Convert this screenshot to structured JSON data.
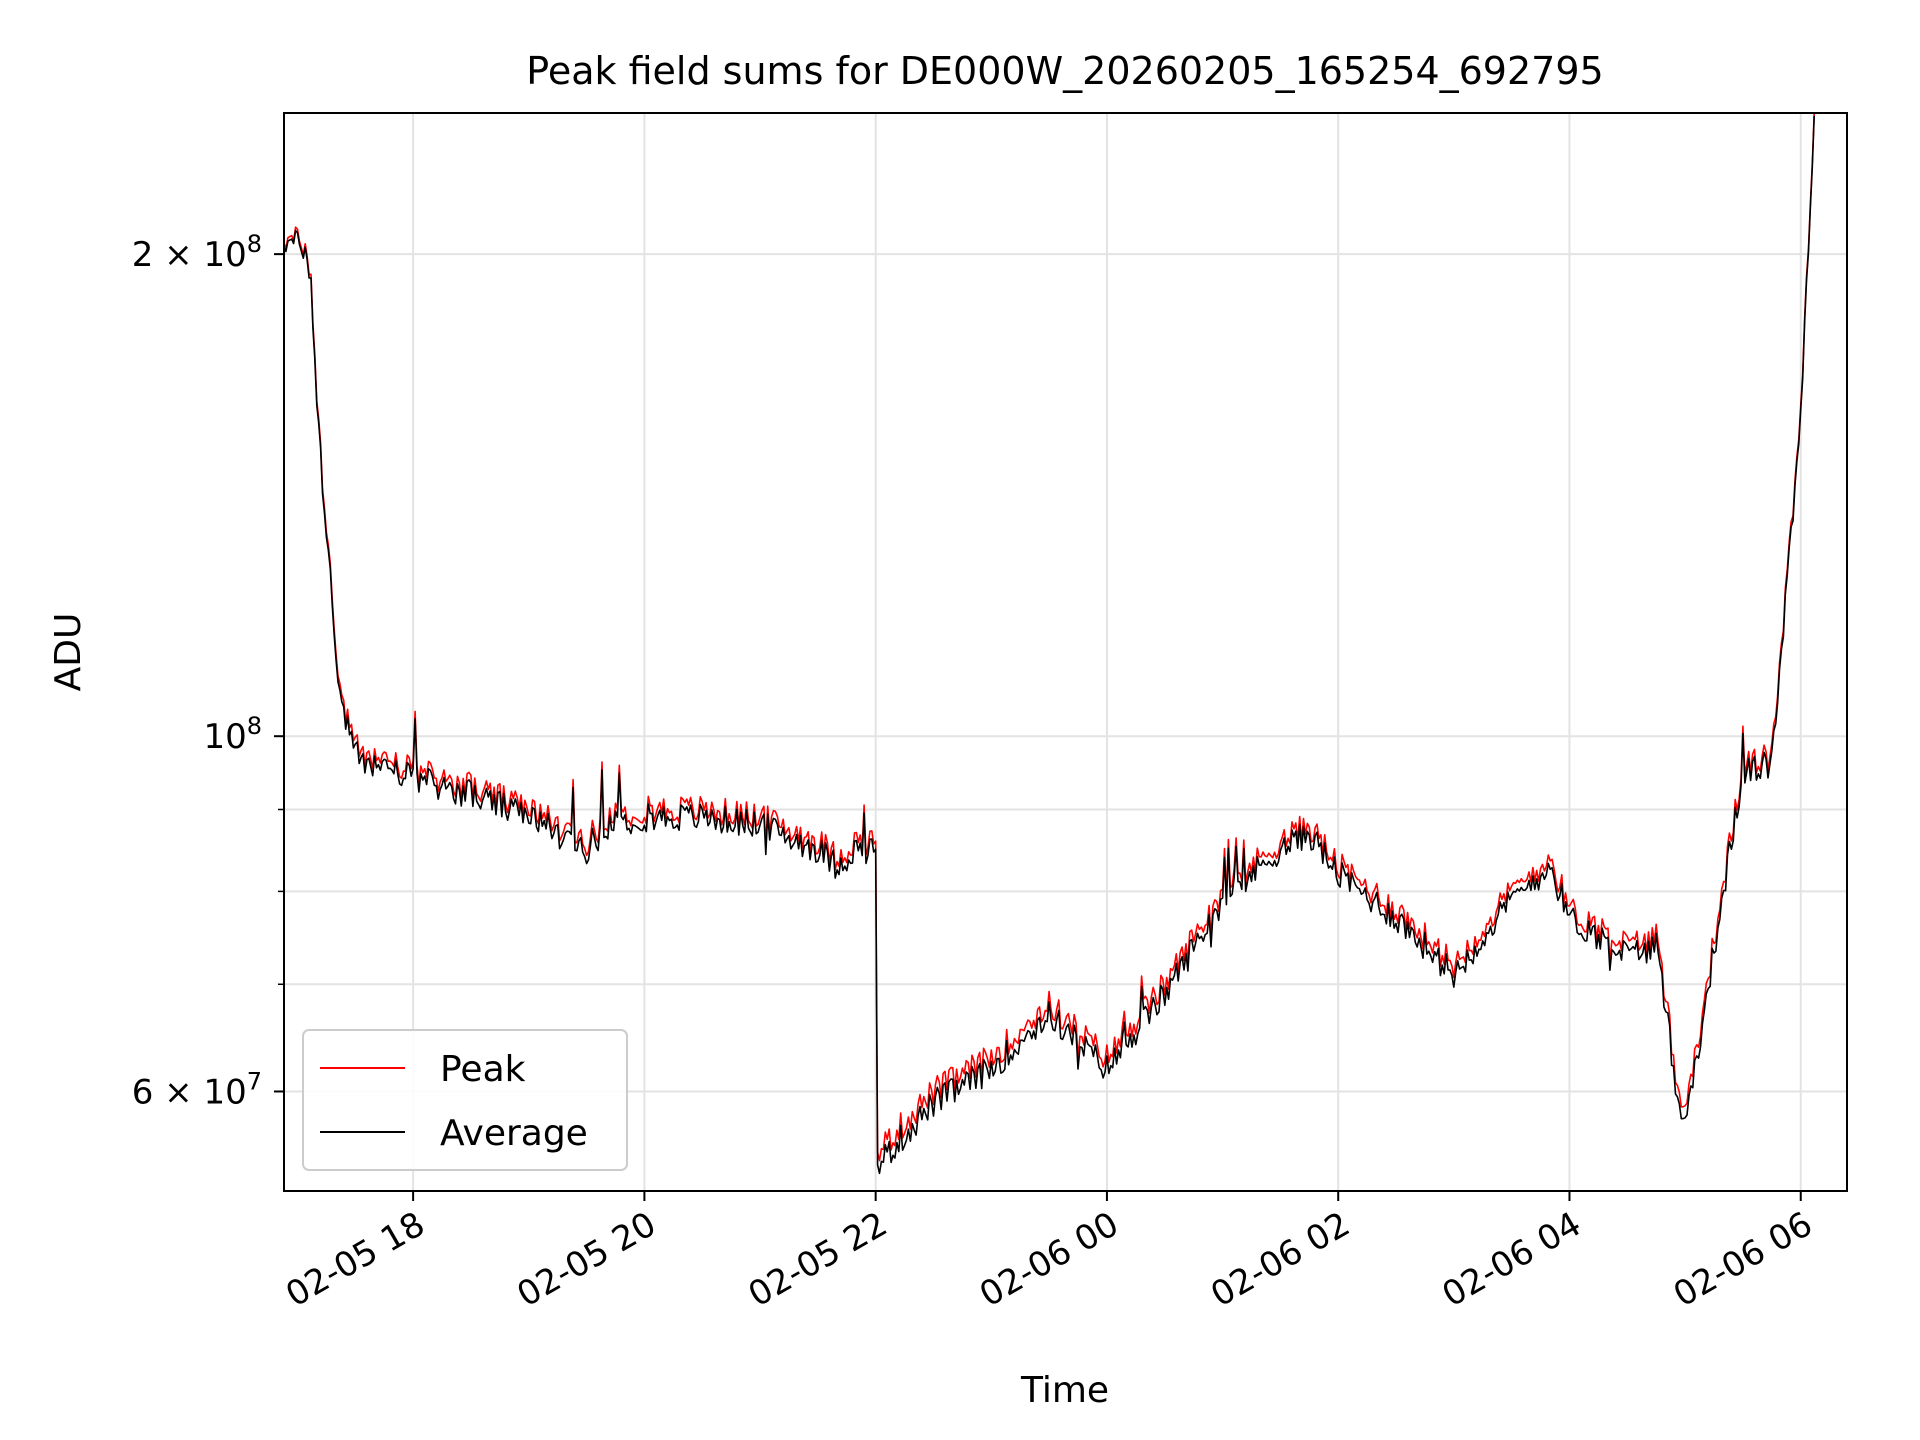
{
  "chart_data": {
    "type": "line",
    "title": "Peak field sums for DE000W_20260205_165254_692795",
    "xlabel": "Time",
    "ylabel": "ADU",
    "y_scale": "log",
    "ylim": [
      52000000,
      245000000
    ],
    "xlim": [
      "2026-02-05 16:53",
      "2026-02-06 06:24"
    ],
    "x_ticks": [
      {
        "label": "02-05 18",
        "value": "2026-02-05 18:00"
      },
      {
        "label": "02-05 20",
        "value": "2026-02-05 20:00"
      },
      {
        "label": "02-05 22",
        "value": "2026-02-05 22:00"
      },
      {
        "label": "02-06 00",
        "value": "2026-02-06 00:00"
      },
      {
        "label": "02-06 02",
        "value": "2026-02-06 02:00"
      },
      {
        "label": "02-06 04",
        "value": "2026-02-06 04:00"
      },
      {
        "label": "02-06 06",
        "value": "2026-02-06 06:00"
      }
    ],
    "y_major_ticks": [
      {
        "label": "2 × 10",
        "exp": "8",
        "value": 200000000
      },
      {
        "label": "10",
        "exp": "8",
        "value": 100000000
      },
      {
        "label": "6 × 10",
        "exp": "7",
        "value": 60000000
      }
    ],
    "y_minor_gridlines": [
      70000000,
      80000000,
      90000000
    ],
    "grid": true,
    "legend_position": "lower-left",
    "colors": {
      "peak": "#ff0000",
      "average": "#000000"
    },
    "series": [
      {
        "name": "Peak",
        "x": [
          "2026-02-05 16:53",
          "2026-02-05 17:04",
          "2026-02-05 17:06",
          "2026-02-05 17:12",
          "2026-02-05 17:17",
          "2026-02-05 17:20",
          "2026-02-05 17:23",
          "2026-02-05 17:28",
          "2026-02-05 17:33",
          "2026-02-05 17:38",
          "2026-02-05 17:45",
          "2026-02-05 18:00",
          "2026-02-05 18:30",
          "2026-02-05 19:00",
          "2026-02-05 19:30",
          "2026-02-05 19:40",
          "2026-02-05 20:00",
          "2026-02-05 20:30",
          "2026-02-05 21:00",
          "2026-02-05 21:30",
          "2026-02-05 21:40",
          "2026-02-05 21:50",
          "2026-02-05 22:00",
          "2026-02-05 22:01",
          "2026-02-05 22:30",
          "2026-02-05 23:00",
          "2026-02-05 23:30",
          "2026-02-06 00:00",
          "2026-02-06 00:30",
          "2026-02-06 01:00",
          "2026-02-06 01:30",
          "2026-02-06 01:45",
          "2026-02-06 02:00",
          "2026-02-06 02:30",
          "2026-02-06 03:00",
          "2026-02-06 03:30",
          "2026-02-06 03:50",
          "2026-02-06 04:00",
          "2026-02-06 04:30",
          "2026-02-06 04:45",
          "2026-02-06 04:55",
          "2026-02-06 05:00",
          "2026-02-06 05:30",
          "2026-02-06 05:45",
          "2026-02-06 06:00",
          "2026-02-06 06:07"
        ],
        "values": [
          205000000,
          203000000,
          196000000,
          150000000,
          127000000,
          113000000,
          105000000,
          100000000,
          98000000,
          97000000,
          97000000,
          95000000,
          93000000,
          90000000,
          86000000,
          89000000,
          90000000,
          90000000,
          89000000,
          86000000,
          84000000,
          86000000,
          86000000,
          55000000,
          60000000,
          63000000,
          68000000,
          63000000,
          70000000,
          80000000,
          86000000,
          88000000,
          83000000,
          78000000,
          72000000,
          80000000,
          84000000,
          78000000,
          74000000,
          75000000,
          62000000,
          58000000,
          96000000,
          97000000,
          160000000,
          245000000
        ]
      },
      {
        "name": "Average",
        "x": [
          "2026-02-05 16:53",
          "2026-02-05 17:04",
          "2026-02-05 17:06",
          "2026-02-05 17:12",
          "2026-02-05 17:17",
          "2026-02-05 17:20",
          "2026-02-05 17:23",
          "2026-02-05 17:28",
          "2026-02-05 17:33",
          "2026-02-05 17:38",
          "2026-02-05 17:45",
          "2026-02-05 18:00",
          "2026-02-05 18:30",
          "2026-02-05 19:00",
          "2026-02-05 19:30",
          "2026-02-05 19:40",
          "2026-02-05 20:00",
          "2026-02-05 20:30",
          "2026-02-05 21:00",
          "2026-02-05 21:30",
          "2026-02-05 21:40",
          "2026-02-05 21:50",
          "2026-02-05 22:00",
          "2026-02-05 22:01",
          "2026-02-05 22:30",
          "2026-02-05 23:00",
          "2026-02-05 23:30",
          "2026-02-06 00:00",
          "2026-02-06 00:30",
          "2026-02-06 01:00",
          "2026-02-06 01:30",
          "2026-02-06 01:45",
          "2026-02-06 02:00",
          "2026-02-06 02:30",
          "2026-02-06 03:00",
          "2026-02-06 03:30",
          "2026-02-06 03:50",
          "2026-02-06 04:00",
          "2026-02-06 04:30",
          "2026-02-06 04:45",
          "2026-02-06 04:55",
          "2026-02-06 05:00",
          "2026-02-06 05:30",
          "2026-02-06 05:45",
          "2026-02-06 06:00",
          "2026-02-06 06:07"
        ],
        "values": [
          204000000,
          202000000,
          195000000,
          149000000,
          126000000,
          112000000,
          104000000,
          99000000,
          97000000,
          96000000,
          96000000,
          94000000,
          92000000,
          89000000,
          85000000,
          88000000,
          89000000,
          89000000,
          88000000,
          85000000,
          83000000,
          85000000,
          85000000,
          54000000,
          59000000,
          62000000,
          67000000,
          62000000,
          69000000,
          79000000,
          85000000,
          87000000,
          82000000,
          77000000,
          71000000,
          79000000,
          83000000,
          77000000,
          73000000,
          74000000,
          61000000,
          57000000,
          95000000,
          96000000,
          159000000,
          244000000
        ]
      }
    ]
  }
}
